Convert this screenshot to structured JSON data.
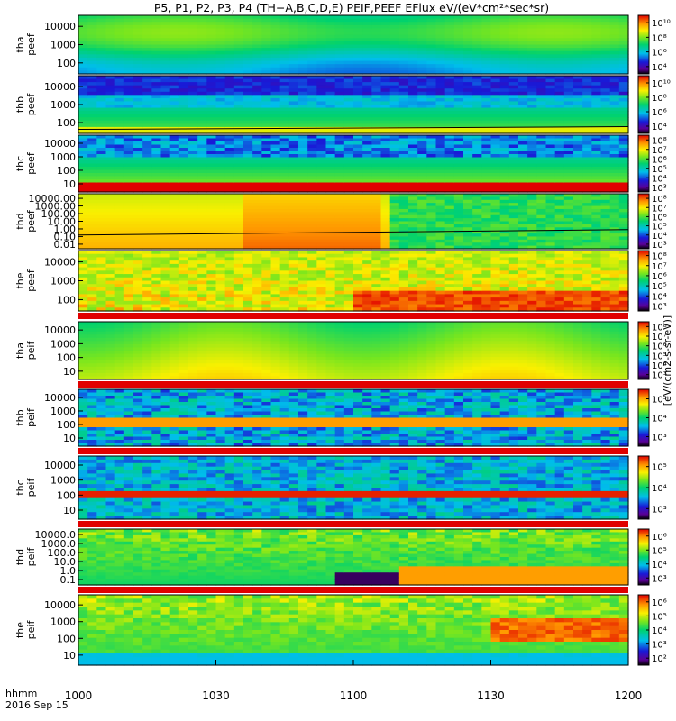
{
  "title": "P5, P1, P2, P3, P4 (TH−A,B,C,D,E) PEIF,PEEF EFlux eV/(eV*cm²*sec*sr)",
  "colorbar_label": "[eV/(cm2-s-sr-eV)]",
  "time_label_1": "hhmm",
  "time_label_2": "2016 Sep 15",
  "colors": {
    "background": "#ffffff",
    "saturated_band": "#e00000",
    "trace": "#000000"
  },
  "chart_data": {
    "type": "heatmap",
    "title": "P5, P1, P2, P3, P4 (TH−A,B,C,D,E) PEIF,PEEF EFlux eV/(eV*cm²*sec*sr)",
    "x_ticks": [
      "1000",
      "1030",
      "1100",
      "1130",
      "1200"
    ],
    "x_range_minutes": [
      0,
      120
    ],
    "colormap": "rainbow (black/purple-blue-cyan-green-yellow-red)",
    "panels": [
      {
        "label_lines": [
          "tha",
          "peef"
        ],
        "y_scale": "log",
        "y_ticks": [
          "10000",
          "1000",
          "100"
        ],
        "cbar_ticks": [
          "10¹⁰",
          "10⁸",
          "10⁶",
          "10⁴"
        ],
        "summary": "mostly green/cyan spectrum, green-yellow at mid energies"
      },
      {
        "label_lines": [
          "thb",
          "peef"
        ],
        "y_scale": "log",
        "y_ticks": [
          "10000",
          "1000",
          "100"
        ],
        "cbar_ticks": [
          "10¹⁰",
          "10⁸",
          "10⁶",
          "10⁴"
        ],
        "summary": "dark blue/purple at high energy, yellow-green near the bottom, black data gap near 1135-1140"
      },
      {
        "label_lines": [
          "thc",
          "peef"
        ],
        "y_scale": "log",
        "y_ticks": [
          "10000",
          "1000",
          "100",
          "10"
        ],
        "cbar_ticks": [
          "10⁸",
          "10⁷",
          "10⁶",
          "10⁵",
          "10⁴",
          "10³"
        ],
        "summary": "blue bands at high energy, green/yellow mid, saturated red band at lowest energy"
      },
      {
        "label_lines": [
          "thd",
          "peef"
        ],
        "y_scale": "log",
        "y_ticks": [
          "10000.00",
          "1000.00",
          "100.00",
          "10.00",
          "1.00",
          "0.10",
          "0.01"
        ],
        "cbar_ticks": [
          "10⁸",
          "10⁷",
          "10⁶",
          "10⁵",
          "10⁴",
          "10³"
        ],
        "summary": "yellow/orange until about 1115, then green/cyan"
      },
      {
        "label_lines": [
          "the",
          "peef"
        ],
        "y_scale": "log",
        "y_ticks": [
          "10000",
          "1000",
          "100"
        ],
        "cbar_ticks": [
          "10⁸",
          "10⁷",
          "10⁶",
          "10⁵",
          "10⁴",
          "10³"
        ],
        "summary": "variable yellow/orange with red low-energy enhancements after 1100"
      },
      {
        "label_lines": [
          "tha",
          "peif"
        ],
        "y_scale": "log",
        "y_ticks": [
          "10000",
          "1000",
          "100",
          "10"
        ],
        "cbar_ticks": [
          "10⁸",
          "10⁷",
          "10⁶",
          "10⁵",
          "10⁴",
          "10³"
        ],
        "summary": "smooth green/yellow ion spectrum"
      },
      {
        "label_lines": [
          "thb",
          "peif"
        ],
        "y_scale": "log",
        "y_ticks": [
          "10000",
          "1000",
          "100",
          "10"
        ],
        "cbar_ticks": [
          "10⁵",
          "10⁴",
          "10³"
        ],
        "summary": "blue/cyan blocks with an orange band near 100"
      },
      {
        "label_lines": [
          "thc",
          "peif"
        ],
        "y_scale": "log",
        "y_ticks": [
          "10000",
          "1000",
          "100",
          "10"
        ],
        "cbar_ticks": [
          "10⁵",
          "10⁴",
          "10³"
        ],
        "summary": "blue/cyan with a persistent red band near 100"
      },
      {
        "label_lines": [
          "thd",
          "peif"
        ],
        "y_scale": "log",
        "y_ticks": [
          "10000.0",
          "1000.0",
          "100.0",
          "10.0",
          "1.0",
          "0.1"
        ],
        "cbar_ticks": [
          "10⁶",
          "10⁵",
          "10⁴",
          "10³"
        ],
        "summary": "green to cyan, black/purple gaps near 1055-1105, orange low energies after 1115"
      },
      {
        "label_lines": [
          "the",
          "peif"
        ],
        "y_scale": "log",
        "y_ticks": [
          "10000",
          "1000",
          "100",
          "10"
        ],
        "cbar_ticks": [
          "10⁶",
          "10⁵",
          "10⁴",
          "10³",
          "10²"
        ],
        "summary": "yellow/green with orange-red patches near the end"
      }
    ]
  }
}
